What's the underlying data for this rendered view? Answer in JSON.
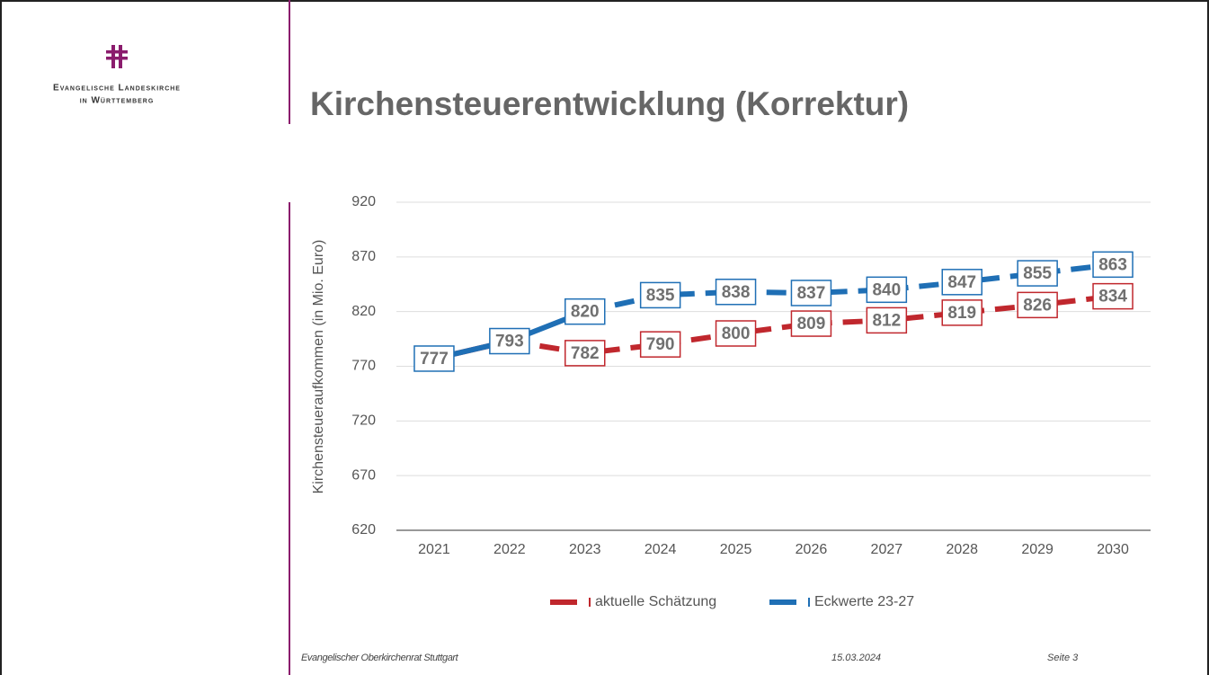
{
  "header": {
    "logo_line1": "Evangelische Landeskirche",
    "logo_line2": "in Württemberg",
    "title": "Kirchensteuerentwicklung (Korrektur)"
  },
  "chart_data": {
    "type": "line",
    "y_label": "Kirchensteueraufkommen (in Mio. Euro)",
    "categories": [
      "2021",
      "2022",
      "2023",
      "2024",
      "2025",
      "2026",
      "2027",
      "2028",
      "2029",
      "2030"
    ],
    "series": [
      {
        "name": "aktuelle Schätzung",
        "color": "#c0272d",
        "solid_until": 1,
        "labels_from": 2,
        "values": [
          777,
          793,
          782,
          790,
          800,
          809,
          812,
          819,
          826,
          834
        ]
      },
      {
        "name": "Eckwerte 23-27",
        "color": "#1f6fb5",
        "solid_until": 2,
        "labels_from": 0,
        "values": [
          777,
          793,
          820,
          835,
          838,
          837,
          840,
          847,
          855,
          863
        ]
      }
    ],
    "ylim": [
      620,
      920
    ],
    "yticks": [
      620,
      670,
      720,
      770,
      820,
      870,
      920
    ],
    "grid": true,
    "legend": "bottom"
  },
  "footer": {
    "left": "Evangelischer Oberkirchenrat Stuttgart",
    "date": "15.03.2024",
    "page": "Seite 3"
  }
}
